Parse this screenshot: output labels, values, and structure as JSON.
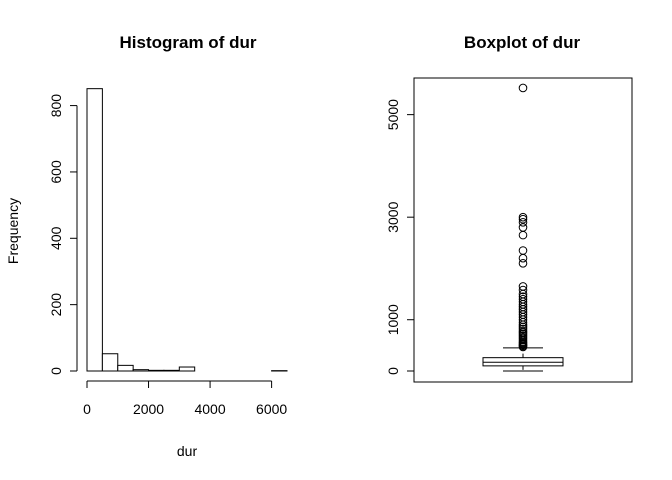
{
  "chart_data": [
    {
      "type": "bar",
      "title": "Histogram of dur",
      "xlabel": "dur",
      "ylabel": "Frequency",
      "xlim": [
        0,
        6500
      ],
      "ylim": [
        0,
        850
      ],
      "bin_width": 500,
      "bins": [
        {
          "start": 0,
          "end": 500,
          "count": 851
        },
        {
          "start": 500,
          "end": 1000,
          "count": 52
        },
        {
          "start": 1000,
          "end": 1500,
          "count": 17
        },
        {
          "start": 1500,
          "end": 2000,
          "count": 4
        },
        {
          "start": 2000,
          "end": 2500,
          "count": 2
        },
        {
          "start": 2500,
          "end": 3000,
          "count": 2
        },
        {
          "start": 3000,
          "end": 3500,
          "count": 12
        },
        {
          "start": 3500,
          "end": 4000,
          "count": 0
        },
        {
          "start": 4000,
          "end": 4500,
          "count": 0
        },
        {
          "start": 4500,
          "end": 5000,
          "count": 0
        },
        {
          "start": 5000,
          "end": 5500,
          "count": 0
        },
        {
          "start": 5500,
          "end": 6000,
          "count": 0
        },
        {
          "start": 6000,
          "end": 6500,
          "count": 1
        }
      ],
      "x_ticks": [
        0,
        2000,
        4000,
        6000
      ],
      "y_ticks": [
        0,
        200,
        400,
        600,
        800
      ],
      "grid": false
    },
    {
      "type": "boxplot",
      "title": "Boxplot of dur",
      "ylim": [
        0,
        5500
      ],
      "y_ticks": [
        0,
        1000,
        3000,
        5000
      ],
      "whisker_low": 0,
      "q1": 100,
      "median": 170,
      "q3": 260,
      "whisker_high": 450,
      "outliers": [
        470,
        490,
        510,
        530,
        550,
        570,
        600,
        630,
        660,
        690,
        720,
        750,
        780,
        820,
        860,
        900,
        950,
        1000,
        1050,
        1100,
        1150,
        1200,
        1250,
        1300,
        1350,
        1400,
        1450,
        1500,
        1580,
        1650,
        2100,
        2200,
        2350,
        2650,
        2800,
        2900,
        2960,
        3000,
        5520
      ],
      "grid": false
    }
  ]
}
